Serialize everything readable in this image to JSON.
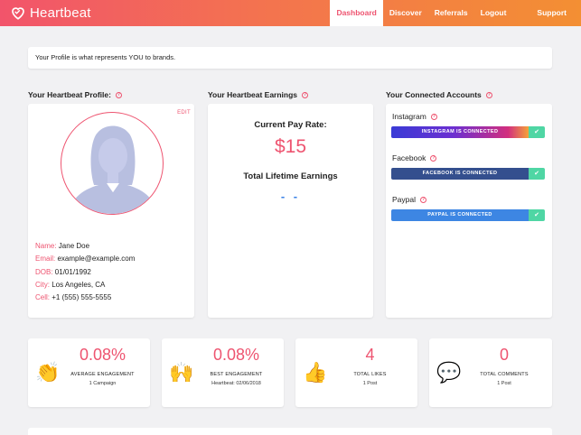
{
  "header": {
    "brand": "Heartbeat",
    "nav": [
      {
        "label": "Dashboard",
        "active": true
      },
      {
        "label": "Discover",
        "active": false
      },
      {
        "label": "Referrals",
        "active": false
      },
      {
        "label": "Logout",
        "active": false
      },
      {
        "label": "Support",
        "active": false
      }
    ]
  },
  "notice": "Your Profile is what represents YOU to brands.",
  "profile": {
    "title": "Your Heartbeat Profile:",
    "edit": "EDIT",
    "fields": [
      {
        "label": "Name:",
        "value": "Jane Doe"
      },
      {
        "label": "Email:",
        "value": "example@example.com"
      },
      {
        "label": "DOB:",
        "value": "01/01/1992"
      },
      {
        "label": "City:",
        "value": "Los Angeles, CA"
      },
      {
        "label": "Cell:",
        "value": "+1 (555) 555-5555"
      }
    ]
  },
  "earnings": {
    "title": "Your Heartbeat Earnings",
    "pay_rate_title": "Current Pay Rate:",
    "pay_rate": "$15",
    "lifetime_title": "Total Lifetime Earnings",
    "lifetime_value": "- -"
  },
  "accounts": {
    "title": "Your Connected Accounts",
    "items": [
      {
        "name": "Instagram",
        "status": "INSTAGRAM IS CONNECTED",
        "check": "✔"
      },
      {
        "name": "Facebook",
        "status": "FACEBOOK IS CONNECTED",
        "check": "✔"
      },
      {
        "name": "Paypal",
        "status": "PAYPAL IS CONNECTED",
        "check": "✔"
      }
    ]
  },
  "stats": [
    {
      "emoji": "👏",
      "icon": "clapping-hands-icon",
      "value": "0.08%",
      "label": "AVERAGE ENGAGEMENT",
      "sub": "1 Campaign"
    },
    {
      "emoji": "🙌",
      "icon": "raising-hands-icon",
      "value": "0.08%",
      "label": "BEST ENGAGEMENT",
      "sub": "Heartbeat: 02/06/2018"
    },
    {
      "emoji": "👍",
      "icon": "thumbs-up-icon",
      "value": "4",
      "label": "TOTAL LIKES",
      "sub": "1 Post"
    },
    {
      "emoji": "💬",
      "icon": "speech-bubble-icon",
      "value": "0",
      "label": "TOTAL COMMENTS",
      "sub": "1 Post"
    }
  ],
  "colors": {
    "accent": "#ee5470",
    "header_gradient_start": "#f2546b",
    "header_gradient_end": "#f38f33",
    "connected_check": "#4fd6a4"
  }
}
